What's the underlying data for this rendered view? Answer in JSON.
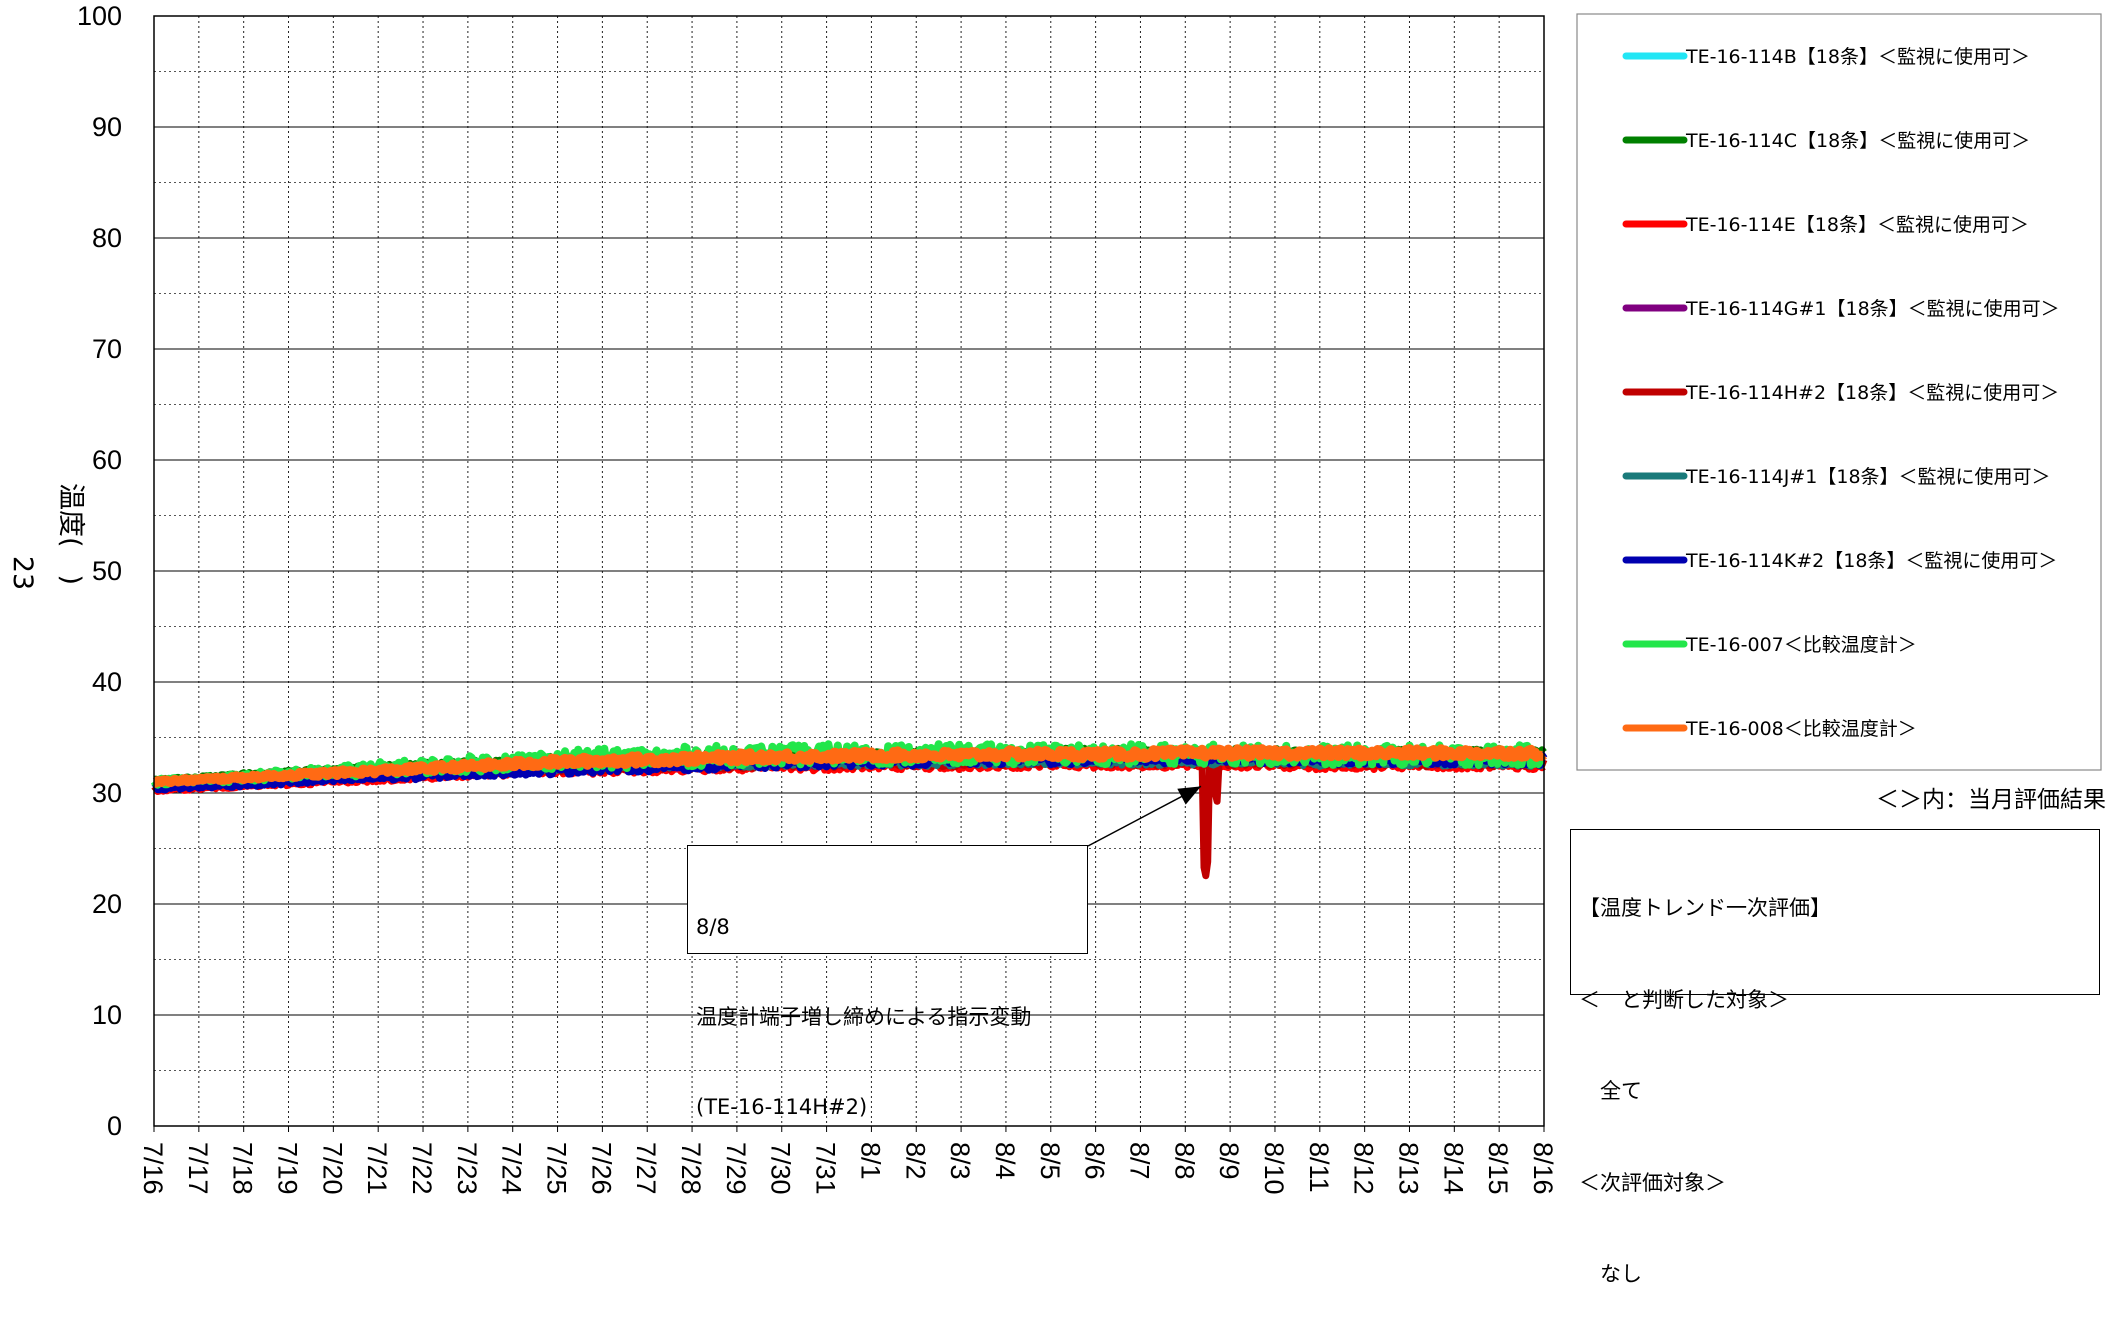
{
  "chart_data": {
    "type": "line",
    "title": "",
    "ylabel": "温度(　)",
    "side_label": "23",
    "ylim": [
      0,
      100
    ],
    "yticks": [
      0,
      10,
      20,
      30,
      40,
      50,
      60,
      70,
      80,
      90,
      100
    ],
    "categories": [
      "7/16",
      "7/17",
      "7/18",
      "7/19",
      "7/20",
      "7/21",
      "7/22",
      "7/23",
      "7/24",
      "7/25",
      "7/26",
      "7/27",
      "7/28",
      "7/29",
      "7/30",
      "7/31",
      "8/1",
      "8/2",
      "8/3",
      "8/4",
      "8/5",
      "8/6",
      "8/7",
      "8/8",
      "8/9",
      "8/10",
      "8/11",
      "8/12",
      "8/13",
      "8/14",
      "8/15",
      "8/16"
    ],
    "grid": true,
    "legend_position": "right",
    "series": [
      {
        "name": "TE-16-114B【18条】＜監視に使用可＞",
        "color": "#22e6f5",
        "values": [
          30.8,
          31.0,
          31.2,
          31.4,
          31.6,
          31.8,
          32.0,
          32.2,
          32.3,
          32.5,
          32.6,
          32.7,
          32.8,
          32.8,
          32.9,
          32.9,
          33.0,
          33.0,
          33.0,
          33.1,
          33.1,
          33.1,
          33.2,
          33.2,
          33.2,
          33.2,
          33.2,
          33.1,
          33.1,
          33.1,
          33.1,
          33.1
        ]
      },
      {
        "name": "TE-16-114C【18条】＜監視に使用可＞",
        "color": "#008000",
        "values": [
          31.2,
          31.4,
          31.7,
          31.9,
          32.1,
          32.3,
          32.5,
          32.7,
          32.9,
          33.0,
          33.2,
          33.3,
          33.3,
          33.4,
          33.4,
          33.5,
          33.5,
          33.6,
          33.6,
          33.6,
          33.7,
          33.7,
          33.7,
          33.7,
          33.7,
          33.7,
          33.6,
          33.6,
          33.6,
          33.6,
          33.6,
          33.6
        ]
      },
      {
        "name": "TE-16-114E【18条】＜監視に使用可＞",
        "color": "#ff0000",
        "values": [
          30.2,
          30.4,
          30.6,
          30.8,
          31.0,
          31.2,
          31.4,
          31.6,
          31.8,
          31.9,
          32.0,
          32.1,
          32.2,
          32.2,
          32.3,
          32.3,
          32.4,
          32.4,
          32.4,
          32.5,
          32.5,
          32.5,
          32.5,
          32.5,
          32.5,
          32.5,
          32.4,
          32.4,
          32.4,
          32.4,
          32.4,
          32.4
        ]
      },
      {
        "name": "TE-16-114G#1【18条】＜監視に使用可＞",
        "color": "#800080",
        "values": [
          30.6,
          30.8,
          31.0,
          31.2,
          31.4,
          31.6,
          31.8,
          32.0,
          32.1,
          32.2,
          32.4,
          32.5,
          32.5,
          32.6,
          32.7,
          32.7,
          32.8,
          32.8,
          32.8,
          32.9,
          32.9,
          32.9,
          32.9,
          32.9,
          32.9,
          32.9,
          32.9,
          32.8,
          32.8,
          32.8,
          32.8,
          32.8
        ]
      },
      {
        "name": "TE-16-114H#2【18条】＜監視に使用可＞",
        "color": "#c00000",
        "values": [
          30.5,
          30.7,
          30.9,
          31.1,
          31.3,
          31.5,
          31.7,
          31.9,
          32.1,
          32.2,
          32.3,
          32.4,
          32.5,
          32.5,
          32.6,
          32.6,
          32.7,
          32.7,
          32.7,
          32.8,
          32.8,
          32.8,
          32.8,
          32.8,
          32.8,
          32.8,
          32.8,
          32.7,
          32.7,
          32.7,
          32.7,
          32.7
        ],
        "dip": {
          "x": "8/8",
          "min": 22.3
        }
      },
      {
        "name": "TE-16-114J#1【18条】＜監視に使用可＞",
        "color": "#1a7a7a",
        "values": [
          30.7,
          30.9,
          31.1,
          31.3,
          31.5,
          31.7,
          31.9,
          32.1,
          32.2,
          32.3,
          32.4,
          32.5,
          32.5,
          32.6,
          32.6,
          32.7,
          32.7,
          32.7,
          32.7,
          32.8,
          32.8,
          32.8,
          32.8,
          32.8,
          32.8,
          32.8,
          32.7,
          32.7,
          32.7,
          32.7,
          32.7,
          32.7
        ]
      },
      {
        "name": "TE-16-114K#2【18条】＜監視に使用可＞",
        "color": "#0000b0",
        "values": [
          30.4,
          30.6,
          30.8,
          31.0,
          31.2,
          31.4,
          31.6,
          31.8,
          32.0,
          32.1,
          32.3,
          32.4,
          32.5,
          32.6,
          32.7,
          32.8,
          32.9,
          32.9,
          33.0,
          33.0,
          33.0,
          33.1,
          33.1,
          33.1,
          33.1,
          33.1,
          33.1,
          33.0,
          33.0,
          33.0,
          33.0,
          33.0
        ]
      },
      {
        "name": "TE-16-007＜比較温度計＞",
        "color": "#22e64a",
        "values": [
          31.0,
          31.2,
          31.4,
          31.7,
          31.9,
          32.2,
          32.4,
          32.6,
          32.8,
          33.0,
          33.1,
          33.2,
          33.3,
          33.4,
          33.4,
          33.5,
          33.5,
          33.5,
          33.5,
          33.5,
          33.5,
          33.5,
          33.5,
          33.5,
          33.5,
          33.5,
          33.4,
          33.4,
          33.4,
          33.4,
          33.4,
          33.4
        ]
      },
      {
        "name": "TE-16-008＜比較温度計＞",
        "color": "#ff6a14",
        "values": [
          31.0,
          31.2,
          31.4,
          31.6,
          31.8,
          32.0,
          32.2,
          32.4,
          32.6,
          32.8,
          32.9,
          33.0,
          33.1,
          33.2,
          33.3,
          33.3,
          33.4,
          33.4,
          33.4,
          33.5,
          33.5,
          33.5,
          33.5,
          33.6,
          33.6,
          33.6,
          33.6,
          33.6,
          33.6,
          33.6,
          33.6,
          33.6
        ]
      }
    ],
    "annotation": {
      "lines": [
        "8/8",
        "温度計端子増し締めによる指示変動",
        "(TE-16-114H#2)"
      ],
      "target": {
        "x": "8/8",
        "y": 31.5
      }
    }
  },
  "notes": {
    "legend_note": "＜＞内：当月評価結果",
    "evaluation_box": [
      "【温度トレンド一次評価】",
      "＜　と判断した対象＞",
      "　全て",
      "＜次評価対象＞",
      "　なし"
    ]
  }
}
